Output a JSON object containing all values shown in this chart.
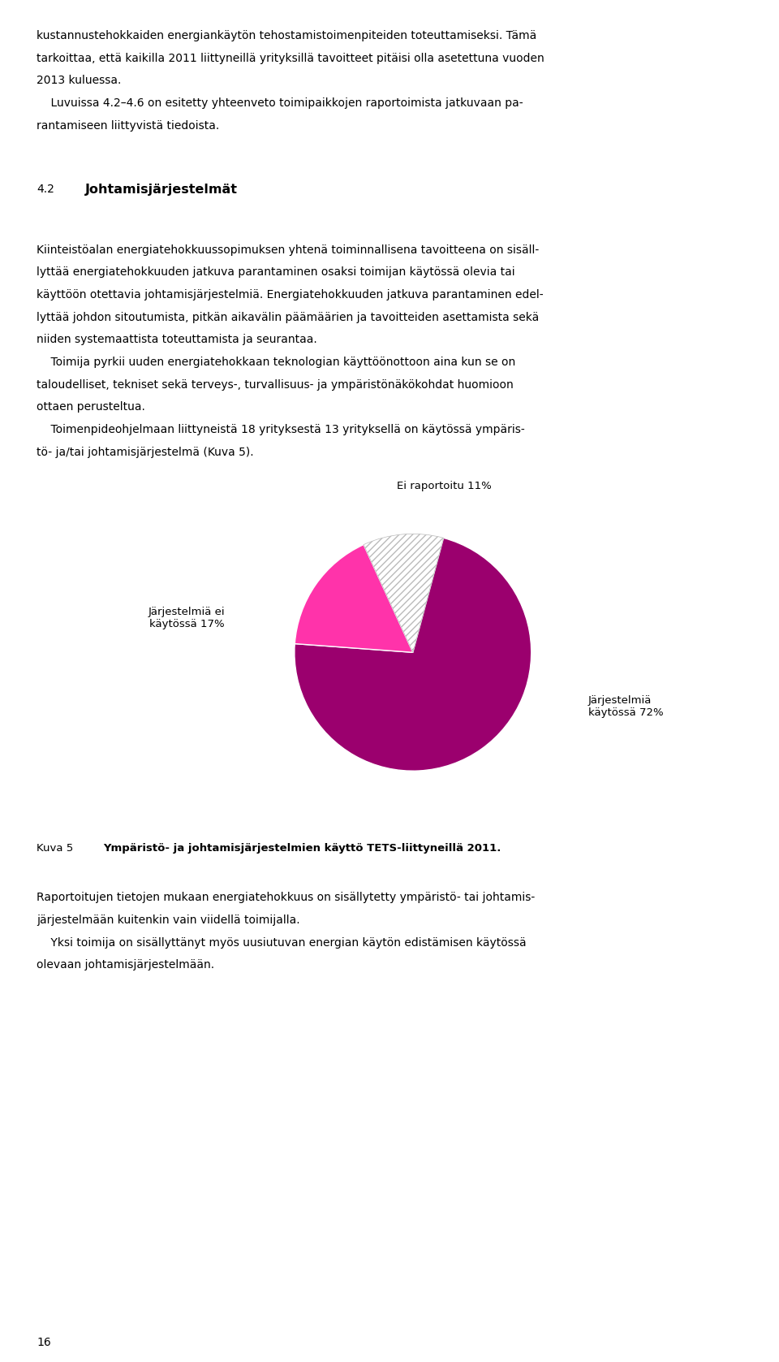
{
  "page_bg": "#ffffff",
  "text_color": "#000000",
  "pie_values": [
    72,
    17,
    11
  ],
  "pie_colors": [
    "#9b006e",
    "#ff33aa",
    "#ffffff"
  ],
  "pie_hatch": [
    "",
    "",
    "////"
  ],
  "pie_edge_color": "#cccccc",
  "caption_label": "Kuva 5",
  "caption_text": "Ympäristö- ja johtamisjärjestelmien käyttö TETS-liittyneillä 2011.",
  "page_num": "16",
  "font_size_body": 10.0,
  "font_size_section_num": 10.0,
  "font_size_section_title": 11.5,
  "font_size_caption_label": 9.5,
  "font_size_caption_text": 9.5,
  "font_size_pie_label": 9.5,
  "font_size_page_num": 10.0,
  "startangle": 75,
  "lines_p1": [
    "kustannustehokkaiden energiankäytön tehostamistoimenpiteiden toteuttamiseksi. Tämä",
    "tarkoittaa, että kaikilla 2011 liittyneillä yrityksillä tavoitteet pitäisi olla asetettuna vuoden",
    "2013 kuluessa.",
    "    Luvuissa 4.2–4.6 on esitetty yhteenveto toimipaikkojen raportoimista jatkuvaan pa-",
    "rantamiseen liittyvistä tiedoista."
  ],
  "section_num": "4.2",
  "section_title": "Johtamisjärjestelmät",
  "lines_p2": [
    "Kiinteistöalan energiatehokkuussopimuksen yhtenä toiminnallisena tavoitteena on sisäll-",
    "lyttää energiatehokkuuden jatkuva parantaminen osaksi toimijan käytössä olevia tai",
    "käyttöön otettavia johtamisjärjestelmiä. Energiatehokkuuden jatkuva parantaminen edel-",
    "lyttää johdon sitoutumista, pitkän aikavälin päämäärien ja tavoitteiden asettamista sekä",
    "niiden systemaattista toteuttamista ja seurantaa.",
    "    Toimija pyrkii uuden energiatehokkaan teknologian käyttöönottoon aina kun se on",
    "taloudelliset, tekniset sekä terveys-, turvallisuus- ja ympäristönäkökohdat huomioon",
    "ottaen perusteltua.",
    "    Toimenpideohjelmaan liittyneistä 18 yrityksestä 13 yrityksellä on käytössä ympäris-",
    "tö- ja/tai johtamisjärjestelmä (Kuva 5)."
  ],
  "lines_p3": [
    "Raportoitujen tietojen mukaan energiatehokkuus on sisällytetty ympäristö- tai johtamis-",
    "järjestelmään kuitenkin vain viidellä toimijalla.",
    "    Yksi toimija on sisällyttänyt myös uusiutuvan energian käytön edistämisen käytössä",
    "olevaan johtamisjärjestelmään."
  ],
  "label_jarj_kaytossa": "Järjestelmiä\nkäytössä 72%",
  "label_ei_kaytossa": "Järjestelmiä ei\nkäytössä 17%",
  "label_ei_raportoitu": "Ei raportoitu 11%"
}
